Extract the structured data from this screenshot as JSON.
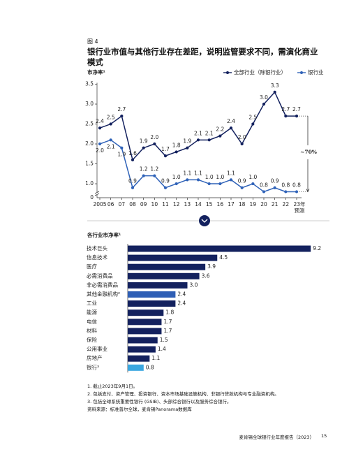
{
  "header": {
    "figure_label": "图 4",
    "title": "银行业市值与其他行业存在差距，说明监管要求不同，需演化商业模式"
  },
  "chart_data": [
    {
      "type": "line",
      "ylabel": "市净率¹",
      "categories": [
        "2005",
        "06",
        "07",
        "08",
        "09",
        "10",
        "11",
        "12",
        "13",
        "14",
        "15",
        "16",
        "17",
        "18",
        "19",
        "20",
        "21",
        "22",
        "23年"
      ],
      "forecast_label": "预测",
      "axis_break_label": "0",
      "annotation": "~70%",
      "ylim": [
        0.65,
        3.5
      ],
      "yticks": [
        {
          "value": 1,
          "label": "1.0"
        },
        1.5,
        {
          "value": 2,
          "label": "2.0"
        },
        2.5,
        {
          "value": 3,
          "label": "3.0"
        },
        3.5
      ],
      "series": [
        {
          "name": "全部行业（除银行业）",
          "color": "#13215e",
          "values": [
            2.4,
            2.5,
            2.7,
            1.6,
            1.9,
            2.0,
            1.7,
            1.8,
            1.9,
            2.1,
            2.1,
            2.2,
            2.4,
            2.0,
            2.5,
            3.0,
            3.3,
            2.7,
            2.7
          ],
          "value_labels": [
            "2.4",
            "2.5",
            "2.7",
            "1.6",
            "1.9",
            "2.0",
            "1.7",
            "1.8",
            "1.9",
            "2.1",
            "2.1",
            "2.2",
            "2.4",
            "2.0",
            "2.5",
            "3.0",
            "3.3",
            "2.7",
            "2.7"
          ]
        },
        {
          "name": "银行业",
          "color": "#2f62b8",
          "values": [
            2.0,
            2.1,
            1.9,
            0.9,
            1.2,
            1.2,
            0.9,
            1.0,
            1.1,
            1.1,
            1.0,
            1.0,
            1.1,
            0.9,
            1.0,
            0.8,
            0.9,
            0.8,
            0.8
          ],
          "value_labels": [
            "2.0",
            "2.1",
            "1.9",
            "0.9",
            "1.2",
            "1.2",
            "0.9",
            "1.0",
            "1.1",
            "1.1",
            "1.0",
            "1.0",
            "1.1",
            "0.9",
            "1.0",
            "0.8",
            "0.9",
            "0.8",
            "0.8"
          ]
        }
      ]
    },
    {
      "type": "hbar",
      "title": "各行业市净率¹",
      "categories": [
        "技术巨头",
        "信息技术",
        "医疗",
        "必需消费品",
        "非必需消费品",
        "其他金融机构²",
        "工业",
        "能源",
        "电信",
        "材料",
        "保险",
        "公用事业",
        "房地产",
        "银行³"
      ],
      "values": [
        9.2,
        4.5,
        3.9,
        3.6,
        3.0,
        2.4,
        2.4,
        1.8,
        1.7,
        1.7,
        1.5,
        1.4,
        1.1,
        0.8
      ],
      "value_labels": [
        "9.2",
        "4.5",
        "3.9",
        "3.6",
        "3.0",
        "2.4",
        "2.4",
        "1.8",
        "1.7",
        "1.7",
        "1.5",
        "1.4",
        "1.1",
        "0.8"
      ],
      "colors": [
        "#13215e",
        "#13215e",
        "#13215e",
        "#13215e",
        "#13215e",
        "#2f5fb5",
        "#13215e",
        "#13215e",
        "#13215e",
        "#13215e",
        "#13215e",
        "#13215e",
        "#13215e",
        "#3aa7e0"
      ]
    }
  ],
  "footnotes": [
    "1.  截止2023年9月1日。",
    "2.  包括支付、资产管理、投资银行、资本市场基础设施机构、非银行贷款机构与专业融资机构。",
    "3.  包括全球系统重要性银行 (GSIB)、头部综合银行以及服务综合银行。"
  ],
  "source": "资料来源：标准普尔全球，麦肯锡Panorama数据库",
  "footer": {
    "report": "麦肯锡全球银行业年度报告（2023）",
    "page": "15"
  }
}
